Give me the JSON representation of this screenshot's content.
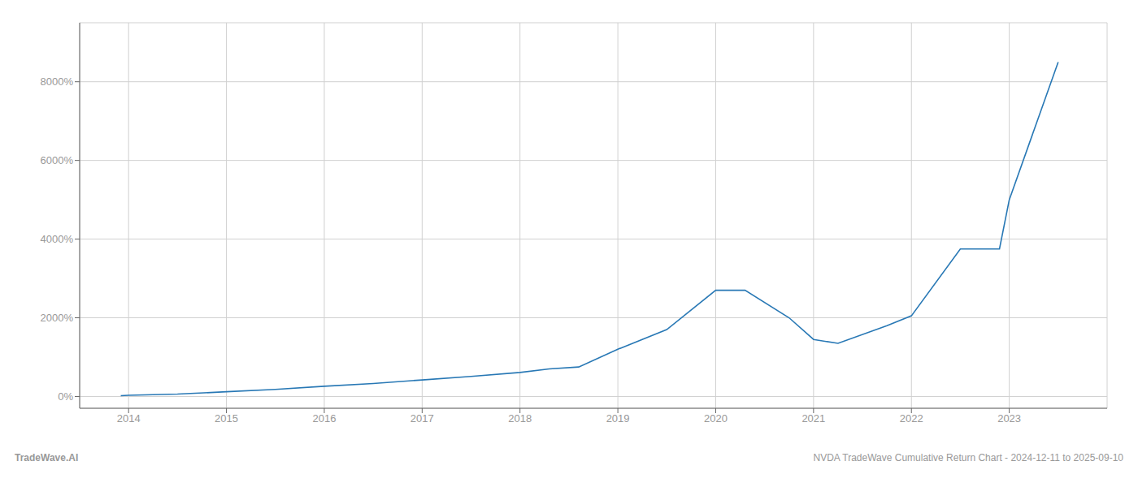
{
  "chart_data": {
    "type": "line",
    "title": "NVDA TradeWave Cumulative Return Chart - 2024-12-11 to 2025-09-10",
    "annotations": [
      "TradeWave.AI"
    ],
    "x": [
      2013.92,
      2014.0,
      2014.5,
      2015.0,
      2015.5,
      2016.0,
      2016.5,
      2017.0,
      2017.5,
      2018.0,
      2018.3,
      2018.6,
      2019.0,
      2019.5,
      2020.0,
      2020.3,
      2020.75,
      2021.0,
      2021.25,
      2021.75,
      2022.0,
      2022.5,
      2022.9,
      2023.0,
      2023.5
    ],
    "values": [
      20,
      30,
      60,
      120,
      180,
      260,
      330,
      420,
      510,
      610,
      700,
      750,
      1200,
      1700,
      2700,
      2700,
      2000,
      1450,
      1350,
      1800,
      2050,
      3750,
      3750,
      5000,
      8500
    ],
    "color": "#2878b5",
    "xlim": [
      2013.5,
      2024.0
    ],
    "ylim": [
      -300,
      9500
    ],
    "xticks": [
      2014,
      2015,
      2016,
      2017,
      2018,
      2019,
      2020,
      2021,
      2022,
      2023
    ],
    "yticks": [
      {
        "value": 0,
        "label": "0%"
      },
      {
        "value": 2000,
        "label": "2000%"
      },
      {
        "value": 4000,
        "label": "4000%"
      },
      {
        "value": 6000,
        "label": "6000%"
      },
      {
        "value": 8000,
        "label": "8000%"
      }
    ],
    "grid": true
  }
}
